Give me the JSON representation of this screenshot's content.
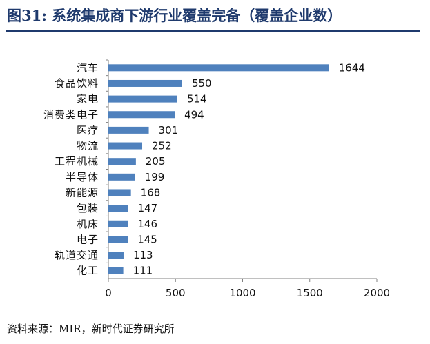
{
  "header": {
    "title": "图31:   系统集成商下游行业覆盖完备（覆盖企业数）"
  },
  "footer": {
    "source": "资料来源：MIR，新时代证券研究所"
  },
  "colors": {
    "title": "#1f3a6d",
    "bar": "#4f81bd",
    "axis": "#808080"
  },
  "chart_data": {
    "type": "bar",
    "orientation": "horizontal",
    "categories": [
      "汽车",
      "食品饮料",
      "家电",
      "消费类电子",
      "医疗",
      "物流",
      "工程机械",
      "半导体",
      "新能源",
      "包装",
      "机床",
      "电子",
      "轨道交通",
      "化工"
    ],
    "values": [
      1644,
      550,
      514,
      494,
      301,
      252,
      205,
      199,
      168,
      147,
      146,
      145,
      113,
      111
    ],
    "xlim": [
      0,
      2000
    ],
    "xticks": [
      0,
      500,
      1000,
      1500,
      2000
    ],
    "xlabel": "",
    "ylabel": "",
    "grid": false,
    "legend": false,
    "data_labels": true
  }
}
